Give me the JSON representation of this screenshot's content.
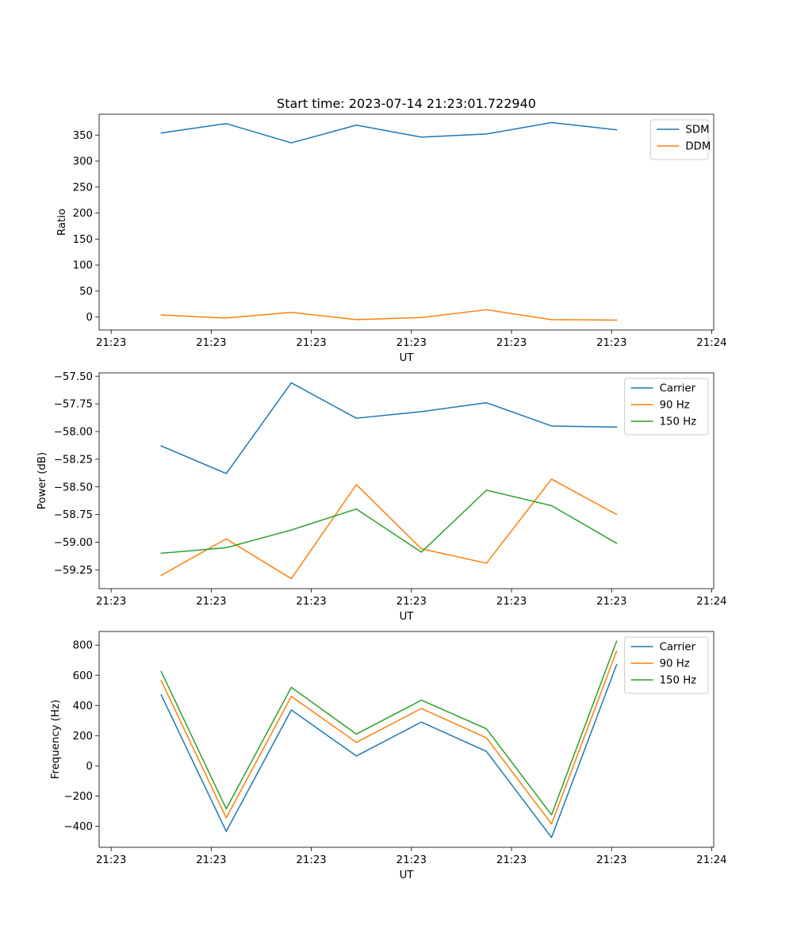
{
  "chart_data": [
    {
      "type": "line",
      "title": "Start time: 2023-07-14 21:23:01.722940",
      "xlabel": "UT",
      "ylabel": "Ratio",
      "x_tick_labels": [
        "21:23",
        "21:23",
        "21:23",
        "21:23",
        "21:23",
        "21:23",
        "21:24"
      ],
      "x_ticks": [
        0,
        10,
        20,
        30,
        40,
        50,
        60
      ],
      "xlim": [
        -1.2,
        60.2
      ],
      "x": [
        5,
        11.5,
        18,
        24.5,
        31,
        37.5,
        44,
        50.5
      ],
      "ylim": [
        -25,
        390
      ],
      "y_ticks": [
        0,
        50,
        100,
        150,
        200,
        250,
        300,
        350
      ],
      "y_tick_labels": [
        "0",
        "50",
        "100",
        "150",
        "200",
        "250",
        "300",
        "350"
      ],
      "legend": "top-right",
      "series": [
        {
          "name": "SDM",
          "color": "#1f77b4",
          "values": [
            354,
            372,
            335,
            369,
            346,
            352,
            374,
            360
          ]
        },
        {
          "name": "DDM",
          "color": "#ff7f0e",
          "values": [
            4,
            -2,
            9,
            -5,
            -1,
            14,
            -5,
            -6
          ]
        }
      ]
    },
    {
      "type": "line",
      "title": "",
      "xlabel": "UT",
      "ylabel": "Power (dB)",
      "x_tick_labels": [
        "21:23",
        "21:23",
        "21:23",
        "21:23",
        "21:23",
        "21:23",
        "21:24"
      ],
      "x_ticks": [
        0,
        10,
        20,
        30,
        40,
        50,
        60
      ],
      "xlim": [
        -1.2,
        60.2
      ],
      "x": [
        5,
        11.5,
        18,
        24.5,
        31,
        37.5,
        44,
        50.5
      ],
      "ylim": [
        -59.42,
        -57.47
      ],
      "y_ticks": [
        -59.25,
        -59.0,
        -58.75,
        -58.5,
        -58.25,
        -58.0,
        -57.75,
        -57.5
      ],
      "y_tick_labels": [
        "−59.25",
        "−59.00",
        "−58.75",
        "−58.50",
        "−58.25",
        "−58.00",
        "−57.75",
        "−57.50"
      ],
      "legend": "top-right",
      "series": [
        {
          "name": "Carrier",
          "color": "#1f77b4",
          "values": [
            -58.13,
            -58.38,
            -57.56,
            -57.88,
            -57.82,
            -57.74,
            -57.95,
            -57.96
          ]
        },
        {
          "name": "90 Hz",
          "color": "#ff7f0e",
          "values": [
            -59.3,
            -58.97,
            -59.33,
            -58.48,
            -59.06,
            -59.19,
            -58.43,
            -58.75
          ]
        },
        {
          "name": "150 Hz",
          "color": "#2ca02c",
          "values": [
            -59.1,
            -59.05,
            -58.89,
            -58.7,
            -59.09,
            -58.53,
            -58.67,
            -59.01
          ]
        }
      ]
    },
    {
      "type": "line",
      "title": "",
      "xlabel": "UT",
      "ylabel": "Frequency (Hz)",
      "x_tick_labels": [
        "21:23",
        "21:23",
        "21:23",
        "21:23",
        "21:23",
        "21:23",
        "21:24"
      ],
      "x_ticks": [
        0,
        10,
        20,
        30,
        40,
        50,
        60
      ],
      "xlim": [
        -1.2,
        60.2
      ],
      "x": [
        5,
        11.5,
        18,
        24.5,
        31,
        37.5,
        44,
        50.5
      ],
      "ylim": [
        -540,
        890
      ],
      "y_ticks": [
        -400,
        -200,
        0,
        200,
        400,
        600,
        800
      ],
      "y_tick_labels": [
        "−400",
        "−200",
        "0",
        "200",
        "400",
        "600",
        "800"
      ],
      "legend": "top-right",
      "series": [
        {
          "name": "Carrier",
          "color": "#1f77b4",
          "values": [
            470,
            -435,
            370,
            65,
            290,
            95,
            -475,
            670
          ]
        },
        {
          "name": "90 Hz",
          "color": "#ff7f0e",
          "values": [
            565,
            -345,
            460,
            155,
            380,
            185,
            -385,
            760
          ]
        },
        {
          "name": "150 Hz",
          "color": "#2ca02c",
          "values": [
            625,
            -285,
            520,
            210,
            435,
            245,
            -325,
            825
          ]
        }
      ]
    }
  ]
}
